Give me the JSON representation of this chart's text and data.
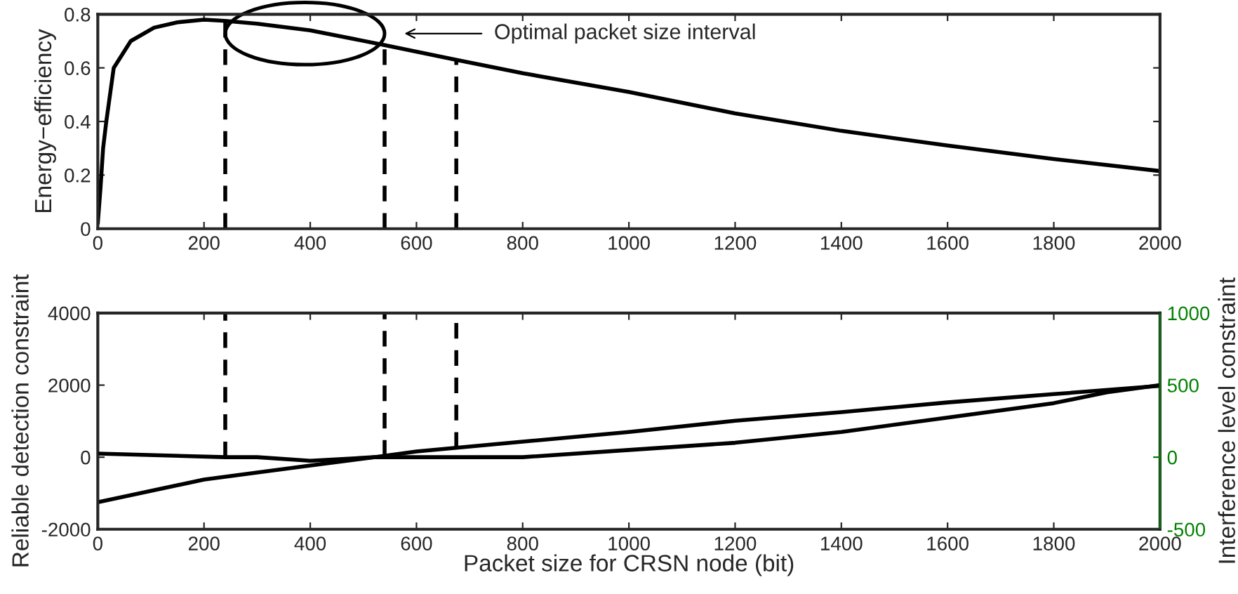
{
  "chart_data": [
    {
      "type": "line",
      "ylabel": "Energy−efficiency",
      "x": [
        0,
        5,
        10,
        16,
        30,
        62,
        106,
        150,
        200,
        240,
        300,
        400,
        540,
        675,
        800,
        1000,
        1200,
        1400,
        1600,
        1800,
        2000
      ],
      "series": [
        {
          "color": "#000000",
          "values": [
            0.02,
            0.15,
            0.3,
            0.4,
            0.6,
            0.7,
            0.75,
            0.77,
            0.78,
            0.775,
            0.765,
            0.74,
            0.685,
            0.63,
            0.58,
            0.51,
            0.43,
            0.365,
            0.31,
            0.26,
            0.215
          ]
        }
      ],
      "xlim": [
        0,
        2000
      ],
      "xticks": [
        0,
        200,
        400,
        600,
        800,
        1000,
        1200,
        1400,
        1600,
        1800,
        2000
      ],
      "ylim": [
        0,
        0.8
      ],
      "yticks": [
        0,
        0.2,
        0.4,
        0.6,
        0.8
      ],
      "ref_lines": [
        {
          "axis": "x",
          "value": 240,
          "color": "#000000",
          "line_style": "dashed"
        },
        {
          "axis": "x",
          "value": 540,
          "color": "#000000",
          "line_style": "dashed"
        },
        {
          "axis": "x",
          "value": 675,
          "color": "#000000",
          "line_style": "dashed"
        }
      ],
      "annotations": [
        "Optimal packet size interval"
      ],
      "grid": false,
      "legend": false
    },
    {
      "type": "line",
      "xlabel": "Packet size for CRSN node (bit)",
      "ylabel": "Reliable detection constraint",
      "y2label": "Interference level constraint",
      "x": [
        0,
        200,
        400,
        520,
        600,
        800,
        1000,
        1200,
        1400,
        1600,
        1800,
        2000
      ],
      "series": [
        {
          "color": "#000000",
          "values": [
            -1250,
            -620,
            -230,
            0,
            160,
            430,
            700,
            1010,
            1250,
            1520,
            1750,
            1980
          ]
        },
        {
          "color": "#000000",
          "axis": "y2",
          "x": [
            0,
            240,
            300,
            400,
            520,
            675,
            800,
            1000,
            1200,
            1400,
            1600,
            1800,
            1900,
            2000
          ],
          "values": [
            25,
            0,
            0,
            -25,
            0,
            0,
            0,
            50,
            100,
            175,
            275,
            375,
            450,
            500
          ]
        }
      ],
      "xlim": [
        0,
        2000
      ],
      "xticks": [
        0,
        200,
        400,
        600,
        800,
        1000,
        1200,
        1400,
        1600,
        1800,
        2000
      ],
      "ylim": [
        -2000,
        4000
      ],
      "yticks": [
        -2000,
        0,
        2000,
        4000
      ],
      "y2lim": [
        -500,
        1000
      ],
      "y2ticks": [
        -500,
        0,
        500,
        1000
      ],
      "ref_lines": [
        {
          "axis": "x",
          "value": 240,
          "color": "#000000",
          "line_style": "dashed"
        },
        {
          "axis": "x",
          "value": 540,
          "color": "#000000",
          "line_style": "dashed"
        },
        {
          "axis": "x",
          "value": 675,
          "color": "#000000",
          "line_style": "dashed"
        }
      ],
      "grid": false,
      "legend": false
    }
  ]
}
